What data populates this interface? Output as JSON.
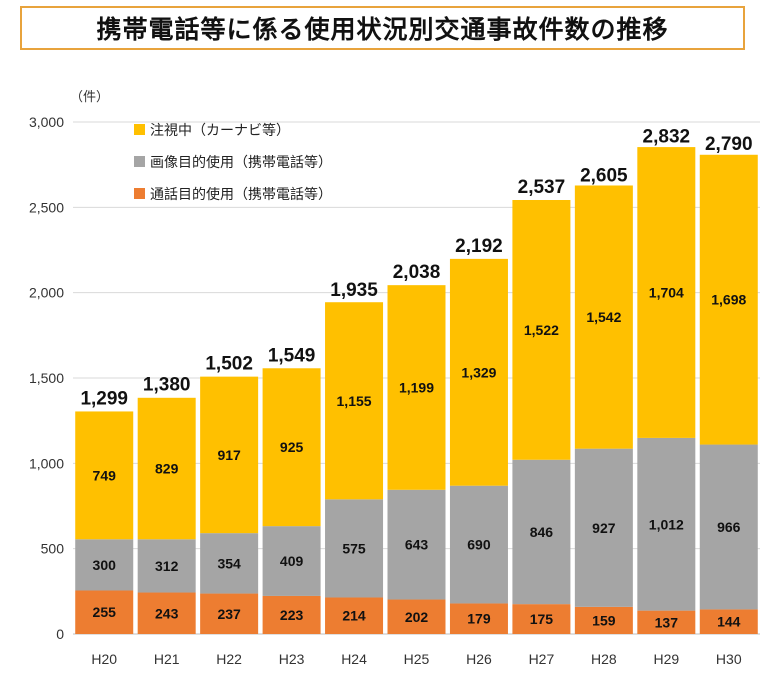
{
  "title": "携帯電話等に係る使用状況別交通事故件数の推移",
  "colors": {
    "gaze": "#ffc000",
    "image": "#a5a5a5",
    "call": "#ed7d31",
    "grid": "#d9d9d9",
    "title_border": "#e8a33c"
  },
  "chart_data": {
    "type": "bar",
    "stacked": true,
    "title": "携帯電話等に係る使用状況別交通事故件数の推移",
    "ylabel": "（件）",
    "xlabel": "",
    "ylim": [
      0,
      3000
    ],
    "yticks": [
      "0",
      "500",
      "1,000",
      "1,500",
      "2,000",
      "2,500",
      "3,000"
    ],
    "ytick_values": [
      0,
      500,
      1000,
      1500,
      2000,
      2500,
      3000
    ],
    "grid": true,
    "legend_position": "top-left",
    "categories": [
      "H20",
      "H21",
      "H22",
      "H23",
      "H24",
      "H25",
      "H26",
      "H27",
      "H28",
      "H29",
      "H30"
    ],
    "series": [
      {
        "name": "通話目的使用（携帯電話等）",
        "color_key": "call",
        "values": [
          255,
          243,
          237,
          223,
          214,
          202,
          179,
          175,
          159,
          137,
          144
        ],
        "labels": [
          "255",
          "243",
          "237",
          "223",
          "214",
          "202",
          "179",
          "175",
          "159",
          "137",
          "144"
        ]
      },
      {
        "name": "画像目的使用（携帯電話等）",
        "color_key": "image",
        "values": [
          300,
          312,
          354,
          409,
          575,
          643,
          690,
          846,
          927,
          1012,
          966
        ],
        "labels": [
          "300",
          "312",
          "354",
          "409",
          "575",
          "643",
          "690",
          "846",
          "927",
          "1,012",
          "966"
        ]
      },
      {
        "name": "注視中（カーナビ等）",
        "color_key": "gaze",
        "values": [
          749,
          829,
          917,
          925,
          1155,
          1199,
          1329,
          1522,
          1542,
          1704,
          1698
        ],
        "labels": [
          "749",
          "829",
          "917",
          "925",
          "1,155",
          "1,199",
          "1,329",
          "1,522",
          "1,542",
          "1,704",
          "1,698"
        ]
      }
    ],
    "totals": [
      1299,
      1380,
      1502,
      1549,
      1935,
      2038,
      2192,
      2537,
      2605,
      2832,
      2790
    ],
    "total_labels": [
      "1,299",
      "1,380",
      "1,502",
      "1,549",
      "1,935",
      "2,038",
      "2,192",
      "2,537",
      "2,605",
      "2,832",
      "2,790"
    ],
    "legend_order": [
      "注視中（カーナビ等）",
      "画像目的使用（携帯電話等）",
      "通話目的使用（携帯電話等）"
    ]
  }
}
